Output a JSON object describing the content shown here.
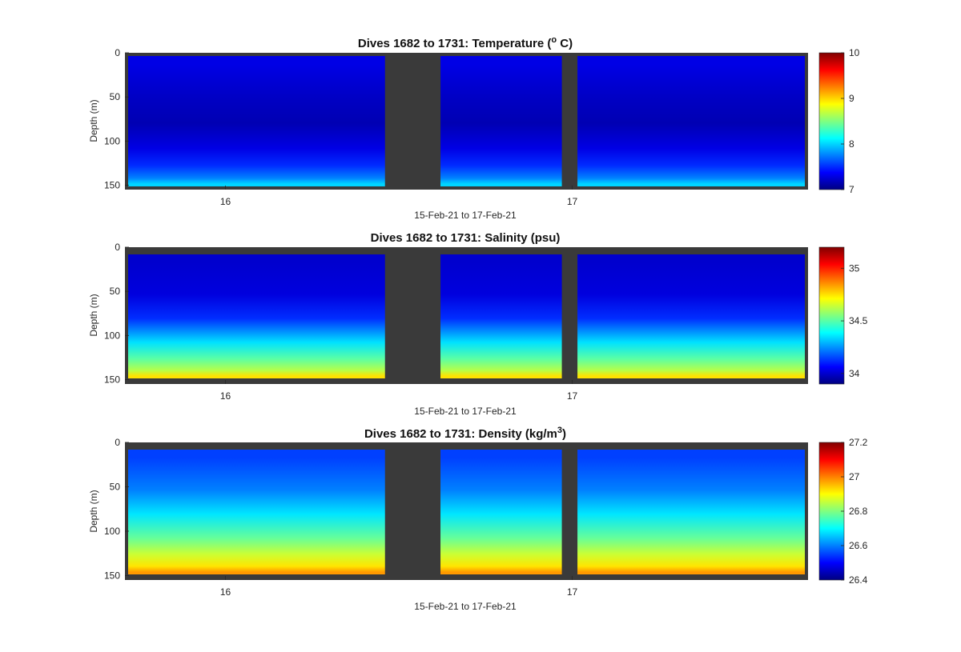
{
  "chart_data": [
    {
      "type": "heatmap",
      "title": "Dives 1682 to 1731: Temperature (",
      "title_sup": "o",
      "title_tail": " C)",
      "xlabel": "15-Feb-21 to 17-Feb-21",
      "ylabel": "Depth (m)",
      "x_ticks": [
        "16",
        "17"
      ],
      "x_tick_values": [
        16.0,
        17.0
      ],
      "xlim": [
        15.71,
        17.68
      ],
      "y_ticks": [
        "0",
        "50",
        "100",
        "150"
      ],
      "y_tick_values": [
        0,
        50,
        100,
        150
      ],
      "ylim": [
        0,
        155
      ],
      "y_reversed": true,
      "colorbar_ticks": [
        "7",
        "8",
        "9",
        "10"
      ],
      "colorbar_tick_values": [
        7,
        8,
        9,
        10
      ],
      "clim": [
        7,
        10
      ],
      "colormap": "jet",
      "no_data_color": "#3a3a3a",
      "gaps": [
        [
          16.46,
          16.62
        ],
        [
          16.97,
          17.015
        ]
      ],
      "profile_layers": [
        {
          "depth": 10,
          "value": 7.3
        },
        {
          "depth": 50,
          "value": 7.2
        },
        {
          "depth": 80,
          "value": 7.15
        },
        {
          "depth": 110,
          "value": 7.3
        },
        {
          "depth": 130,
          "value": 7.5
        },
        {
          "depth": 145,
          "value": 7.75
        },
        {
          "depth": 152,
          "value": 8.0
        }
      ]
    },
    {
      "type": "heatmap",
      "title": "Dives 1682 to 1731: Salinity (psu)",
      "xlabel": "15-Feb-21 to 17-Feb-21",
      "ylabel": "Depth (m)",
      "x_ticks": [
        "16",
        "17"
      ],
      "x_tick_values": [
        16.0,
        17.0
      ],
      "xlim": [
        15.71,
        17.68
      ],
      "y_ticks": [
        "0",
        "50",
        "100",
        "150"
      ],
      "y_tick_values": [
        0,
        50,
        100,
        150
      ],
      "ylim": [
        0,
        155
      ],
      "y_reversed": true,
      "colorbar_ticks": [
        "34",
        "34.5",
        "35"
      ],
      "colorbar_tick_values": [
        34,
        34.5,
        35
      ],
      "clim": [
        33.9,
        35.2
      ],
      "colormap": "jet",
      "no_data_color": "#3a3a3a",
      "gaps": [
        [
          16.46,
          16.62
        ],
        [
          16.97,
          17.015
        ]
      ],
      "profile_layers": [
        {
          "depth": 10,
          "value": 34.0
        },
        {
          "depth": 50,
          "value": 34.02
        },
        {
          "depth": 80,
          "value": 34.12
        },
        {
          "depth": 110,
          "value": 34.35
        },
        {
          "depth": 130,
          "value": 34.5
        },
        {
          "depth": 145,
          "value": 34.62
        },
        {
          "depth": 152,
          "value": 34.75
        }
      ]
    },
    {
      "type": "heatmap",
      "title": "Dives 1682 to 1731: Density (kg/m",
      "title_sup": "3",
      "title_tail": ")",
      "xlabel": "15-Feb-21 to 17-Feb-21",
      "ylabel": "Depth (m)",
      "x_ticks": [
        "16",
        "17"
      ],
      "x_tick_values": [
        16.0,
        17.0
      ],
      "xlim": [
        15.71,
        17.68
      ],
      "y_ticks": [
        "0",
        "50",
        "100",
        "150"
      ],
      "y_tick_values": [
        0,
        50,
        100,
        150
      ],
      "ylim": [
        0,
        155
      ],
      "y_reversed": true,
      "colorbar_ticks": [
        "26.4",
        "26.6",
        "26.8",
        "27",
        "27.2"
      ],
      "colorbar_tick_values": [
        26.4,
        26.6,
        26.8,
        27.0,
        27.2
      ],
      "clim": [
        26.4,
        27.2
      ],
      "colormap": "jet",
      "no_data_color": "#3a3a3a",
      "gaps": [
        [
          16.46,
          16.62
        ],
        [
          16.97,
          17.015
        ]
      ],
      "profile_layers": [
        {
          "depth": 10,
          "value": 26.55
        },
        {
          "depth": 50,
          "value": 26.6
        },
        {
          "depth": 80,
          "value": 26.68
        },
        {
          "depth": 110,
          "value": 26.78
        },
        {
          "depth": 130,
          "value": 26.86
        },
        {
          "depth": 145,
          "value": 26.92
        },
        {
          "depth": 152,
          "value": 26.98
        }
      ]
    }
  ]
}
